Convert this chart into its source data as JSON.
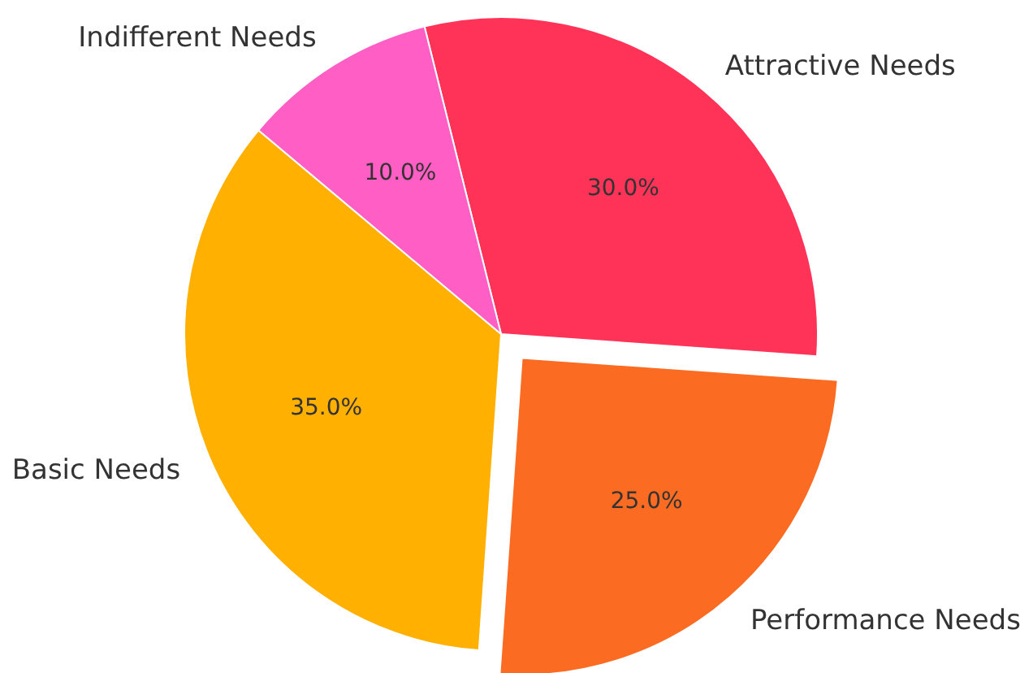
{
  "chart_data": {
    "type": "pie",
    "categories": [
      "Basic Needs",
      "Performance Needs",
      "Attractive Needs",
      "Indifferent Needs"
    ],
    "values": [
      35,
      25,
      30,
      10
    ],
    "colors": [
      "#ffb000",
      "#fb6b22",
      "#ff3358",
      "#ff5ec4"
    ],
    "value_labels": [
      "35.0%",
      "25.0%",
      "30.0%",
      "10.0%"
    ]
  }
}
